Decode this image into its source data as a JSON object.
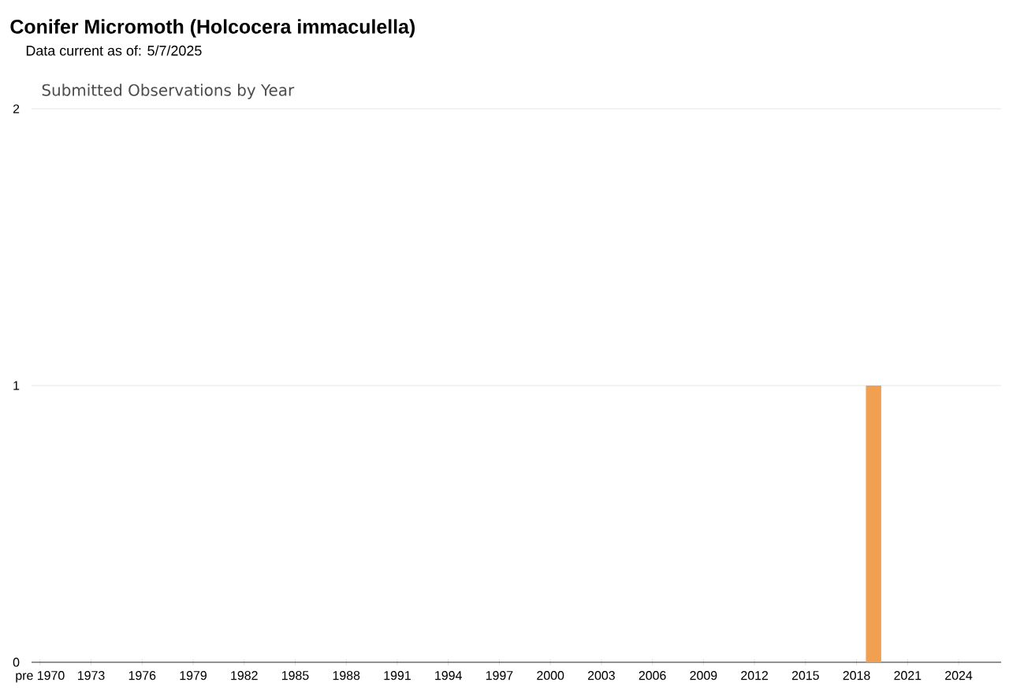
{
  "chart_data": {
    "type": "bar",
    "title": "Conifer Micromoth   (Holcocera immaculella)",
    "subtitle": "Data current as of: 5/7/2025",
    "annotations": [
      "Submitted Observations by Year"
    ],
    "categories": [
      "pre 1970",
      null,
      null,
      "1973",
      null,
      null,
      "1976",
      null,
      null,
      "1979",
      null,
      null,
      "1982",
      null,
      null,
      "1985",
      null,
      null,
      "1988",
      null,
      null,
      "1991",
      null,
      null,
      "1994",
      null,
      null,
      "1997",
      null,
      null,
      "2000",
      null,
      null,
      "2003",
      null,
      null,
      "2006",
      null,
      null,
      "2009",
      null,
      null,
      "2012",
      null,
      null,
      "2015",
      null,
      null,
      "2018",
      null,
      null,
      "2021",
      null,
      null,
      "2024",
      null,
      null
    ],
    "values": [
      0,
      0,
      0,
      0,
      0,
      0,
      0,
      0,
      0,
      0,
      0,
      0,
      0,
      0,
      0,
      0,
      0,
      0,
      0,
      0,
      0,
      0,
      0,
      0,
      0,
      0,
      0,
      0,
      0,
      0,
      0,
      0,
      0,
      0,
      0,
      0,
      0,
      0,
      0,
      0,
      0,
      0,
      0,
      0,
      0,
      0,
      0,
      0,
      0,
      1,
      0,
      0,
      0,
      0,
      0,
      0,
      0
    ],
    "color": "#f0a050",
    "ylim": [
      0,
      2
    ],
    "yticks": [
      0,
      1,
      2
    ],
    "grid": "y"
  }
}
